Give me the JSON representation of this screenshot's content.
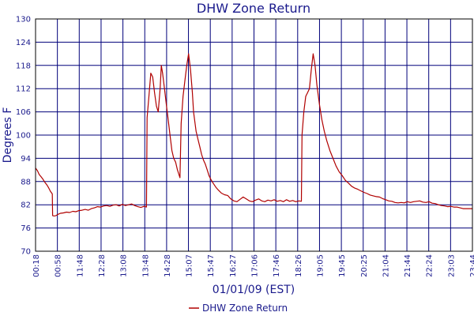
{
  "chart_data": {
    "type": "line",
    "title": "DHW Zone Return",
    "xlabel": "01/01/09 (EST)",
    "ylabel": "Degrees F",
    "ylim": [
      70,
      130
    ],
    "yticks": [
      70,
      76,
      82,
      88,
      94,
      100,
      106,
      112,
      118,
      124,
      130
    ],
    "xlim": [
      "00:18",
      "23:44"
    ],
    "xticks": [
      "00:18",
      "00:58",
      "11:48",
      "12:28",
      "13:08",
      "13:48",
      "14:28",
      "15:07",
      "15:47",
      "16:27",
      "17:06",
      "17:46",
      "18:26",
      "19:05",
      "19:45",
      "20:25",
      "21:04",
      "21:44",
      "22:24",
      "23:03",
      "23:44"
    ],
    "grid": true,
    "legend_position": "bottom",
    "colors": {
      "series": "#b00000",
      "grid": "#00007a",
      "frame": "#000000"
    },
    "series": [
      {
        "name": "DHW Zone Return",
        "x": [
          0.0,
          0.3,
          0.6,
          0.9,
          1.2,
          1.5,
          1.8,
          2.1,
          2.4,
          2.7,
          2.75,
          3.0,
          3.3,
          3.6,
          4.0,
          4.5,
          5.0,
          5.5,
          6.0,
          6.5,
          7.0,
          7.5,
          8.0,
          8.5,
          9.0,
          9.5,
          10.0,
          10.5,
          11.0,
          11.5,
          12.0,
          12.5,
          13.0,
          13.5,
          14.0,
          14.5,
          15.0,
          15.5,
          16.0,
          16.5,
          17.0,
          17.5,
          17.9,
          18.0,
          18.3,
          18.6,
          18.9,
          19.2,
          19.5,
          19.8,
          20.1,
          20.3,
          20.5,
          20.8,
          21.1,
          21.4,
          21.7,
          22.0,
          22.3,
          22.6,
          22.9,
          23.1,
          23.3,
          23.5,
          23.8,
          24.1,
          24.4,
          24.7,
          25.0,
          25.3,
          25.5,
          25.7,
          25.9,
          26.2,
          26.5,
          26.8,
          27.1,
          27.4,
          27.7,
          28.0,
          28.3,
          28.7,
          29.1,
          29.5,
          30.0,
          30.5,
          31.0,
          31.5,
          32.0,
          32.5,
          33.0,
          33.5,
          34.0,
          34.5,
          35.0,
          35.5,
          36.0,
          36.5,
          37.0,
          37.5,
          38.0,
          38.5,
          39.0,
          39.5,
          40.0,
          40.5,
          41.0,
          41.5,
          42.0,
          42.5,
          42.9,
          43.0,
          43.3,
          43.6,
          43.9,
          44.2,
          44.5,
          44.8,
          45.1,
          45.4,
          45.8,
          46.2,
          46.6,
          47.0,
          47.5,
          48.0,
          48.5,
          49.0,
          49.5,
          50.0,
          50.5,
          51.0,
          51.5,
          52.0,
          52.5,
          53.0,
          53.5,
          54.0,
          54.5,
          55.0,
          55.5,
          56.0,
          56.5,
          57.0,
          57.5,
          58.0,
          58.5,
          59.0,
          59.5,
          60.0,
          60.5,
          61.0,
          61.5,
          62.0,
          62.5,
          63.0,
          63.5,
          64.0,
          64.5,
          65.0,
          65.5,
          66.0,
          66.5,
          67.0,
          67.5,
          68.0,
          68.5,
          69.0,
          69.5,
          70.0,
          70.5
        ],
        "y": [
          91.5,
          90.8,
          89.8,
          89.2,
          88.6,
          87.8,
          87.2,
          86.4,
          85.5,
          84.8,
          79.2,
          79.1,
          79.2,
          79.5,
          79.8,
          79.9,
          80.1,
          80.0,
          80.3,
          80.2,
          80.5,
          80.6,
          80.8,
          80.6,
          81.0,
          81.2,
          81.5,
          81.4,
          81.7,
          81.8,
          81.6,
          81.9,
          82.0,
          81.7,
          82.1,
          81.8,
          82.0,
          82.2,
          81.8,
          81.5,
          81.3,
          81.6,
          81.4,
          104.5,
          110.0,
          116.0,
          115.0,
          111.0,
          107.5,
          106.0,
          112.0,
          118.0,
          116.0,
          112.0,
          108.0,
          104.0,
          100.0,
          96.0,
          94.0,
          93.0,
          91.0,
          90.0,
          89.0,
          103.0,
          110.0,
          114.0,
          118.0,
          121.0,
          117.0,
          111.0,
          106.0,
          103.5,
          101.0,
          99.0,
          97.0,
          95.0,
          93.5,
          92.5,
          91.0,
          89.5,
          88.5,
          87.5,
          86.5,
          85.8,
          85.0,
          84.6,
          84.4,
          83.5,
          83.0,
          82.8,
          83.4,
          84.0,
          83.5,
          83.0,
          82.8,
          83.2,
          83.5,
          83.0,
          82.8,
          83.2,
          83.0,
          83.3,
          82.9,
          83.1,
          82.8,
          83.3,
          82.9,
          83.1,
          82.8,
          83.0,
          82.9,
          100.0,
          106.0,
          110.0,
          111.0,
          112.0,
          117.0,
          121.0,
          118.0,
          113.0,
          108.0,
          104.0,
          101.0,
          98.5,
          96.0,
          94.0,
          92.0,
          90.5,
          89.5,
          88.3,
          87.6,
          86.8,
          86.3,
          86.0,
          85.6,
          85.2,
          84.9,
          84.5,
          84.3,
          84.1,
          84.0,
          83.6,
          83.3,
          83.0,
          82.9,
          82.6,
          82.5,
          82.6,
          82.5,
          82.8,
          82.6,
          82.8,
          82.9,
          83.0,
          82.7,
          82.6,
          82.8,
          82.4,
          82.3,
          82.0,
          81.8,
          81.7,
          81.5,
          81.6,
          81.4,
          81.4,
          81.2,
          81.0,
          81.0,
          81.0,
          81.0
        ]
      }
    ]
  }
}
